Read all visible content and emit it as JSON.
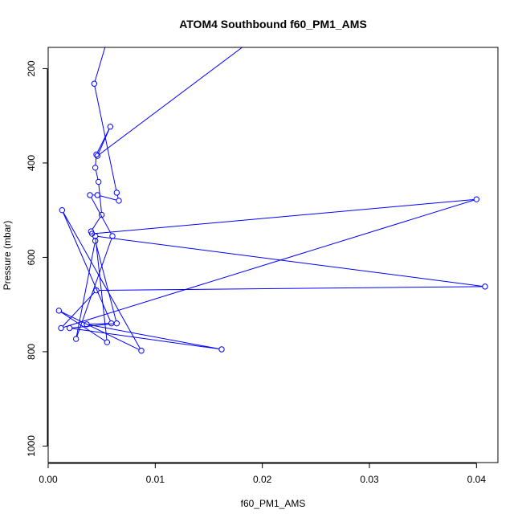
{
  "chart_data": {
    "type": "line",
    "title": "ATOM4 Southbound f60_PM1_AMS",
    "xlabel": "f60_PM1_AMS",
    "ylabel": "Pressure (mbar)",
    "xlim": [
      0.0,
      0.042
    ],
    "ylim": [
      1035,
      155
    ],
    "y_reversed": true,
    "grid": false,
    "legend": "none",
    "x_ticks": [
      {
        "value": 0.0,
        "label": "0.00"
      },
      {
        "value": 0.01,
        "label": "0.01"
      },
      {
        "value": 0.02,
        "label": "0.02"
      },
      {
        "value": 0.03,
        "label": "0.03"
      },
      {
        "value": 0.04,
        "label": "0.04"
      }
    ],
    "y_ticks": [
      {
        "value": 200,
        "label": "200"
      },
      {
        "value": 400,
        "label": "400"
      },
      {
        "value": 600,
        "label": "600"
      },
      {
        "value": 800,
        "label": "800"
      },
      {
        "value": 1000,
        "label": "1000"
      }
    ],
    "series": [
      {
        "color": "#0000ff",
        "marker": "open-circle",
        "points": [
          {
            "x": 0.019,
            "y": 140
          },
          {
            "x": 0.0046,
            "y": 385
          },
          {
            "x": 0.0058,
            "y": 323
          },
          {
            "x": 0.0045,
            "y": 382
          },
          {
            "x": 0.0044,
            "y": 410
          },
          {
            "x": 0.0047,
            "y": 440
          },
          {
            "x": 0.005,
            "y": 510
          },
          {
            "x": 0.004,
            "y": 545
          },
          {
            "x": 0.0041,
            "y": 550
          },
          {
            "x": 0.04,
            "y": 477
          },
          {
            "x": 0.0012,
            "y": 750
          },
          {
            "x": 0.0045,
            "y": 670
          },
          {
            "x": 0.0408,
            "y": 662
          },
          {
            "x": 0.0044,
            "y": 555
          },
          {
            "x": 0.0055,
            "y": 780
          },
          {
            "x": 0.001,
            "y": 713
          },
          {
            "x": 0.0087,
            "y": 798
          },
          {
            "x": 0.0013,
            "y": 500
          },
          {
            "x": 0.0059,
            "y": 740
          },
          {
            "x": 0.0036,
            "y": 742
          },
          {
            "x": 0.0162,
            "y": 795
          },
          {
            "x": 0.002,
            "y": 750
          },
          {
            "x": 0.0064,
            "y": 740
          },
          {
            "x": 0.0044,
            "y": 565
          },
          {
            "x": 0.0026,
            "y": 773
          },
          {
            "x": 0.006,
            "y": 555
          },
          {
            "x": 0.0039,
            "y": 468
          },
          {
            "x": 0.0046,
            "y": 468
          },
          {
            "x": 0.0066,
            "y": 480
          },
          {
            "x": 0.0064,
            "y": 463
          },
          {
            "x": 0.0043,
            "y": 232
          },
          {
            "x": 0.0055,
            "y": 140
          },
          {
            "x": 0.0038,
            "y": 140
          },
          {
            "x": 0.0024,
            "y": 140
          },
          {
            "x": 0.0042,
            "y": 140
          },
          {
            "x": 0.0054,
            "y": 140
          }
        ]
      }
    ]
  }
}
